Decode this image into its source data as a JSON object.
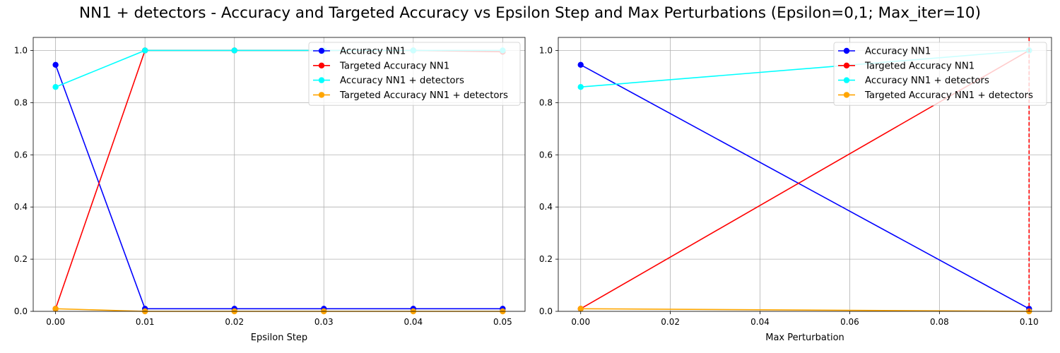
{
  "suptitle": "NN1 + detectors - Accuracy and Targeted Accuracy vs Epsilon Step and Max Perturbations (Epsilon=0,1; Max_iter=10)",
  "colors": {
    "accuracy": "#0000ff",
    "targeted": "#ff0000",
    "accuracy_det": "#00ffff",
    "targeted_det": "#ffa500",
    "vline": "#ff0000",
    "grid": "#b0b0b0"
  },
  "chart_data": [
    {
      "type": "line",
      "xlabel": "Epsilon Step",
      "ylabel": "",
      "x": [
        0.0,
        0.01,
        0.02,
        0.03,
        0.04,
        0.05
      ],
      "xticks": [
        "0.00",
        "0.01",
        "0.02",
        "0.03",
        "0.04",
        "0.05"
      ],
      "xlim": [
        -0.0025,
        0.0525
      ],
      "ylim": [
        0,
        1.05
      ],
      "yticks": [
        "0.0",
        "0.2",
        "0.4",
        "0.6",
        "0.8",
        "1.0"
      ],
      "grid": true,
      "legend_position": "top-right",
      "series": [
        {
          "name": "Accuracy NN1",
          "color_key": "accuracy",
          "values": [
            0.945,
            0.01,
            0.01,
            0.01,
            0.01,
            0.01
          ]
        },
        {
          "name": "Targeted Accuracy NN1",
          "color_key": "targeted",
          "values": [
            0.01,
            1.0,
            1.0,
            1.0,
            1.0,
            0.995
          ]
        },
        {
          "name": "Accuracy NN1 + detectors",
          "color_key": "accuracy_det",
          "values": [
            0.86,
            1.0,
            1.0,
            1.0,
            1.0,
            1.0
          ]
        },
        {
          "name": "Targeted Accuracy NN1 + detectors",
          "color_key": "targeted_det",
          "values": [
            0.01,
            0.0,
            0.0,
            0.0,
            0.0,
            0.0
          ]
        }
      ]
    },
    {
      "type": "line",
      "xlabel": "Max Perturbation",
      "ylabel": "",
      "x": [
        0.0,
        0.1
      ],
      "xticks": [
        "0.00",
        "0.02",
        "0.04",
        "0.06",
        "0.08",
        "0.10"
      ],
      "xlim": [
        -0.005,
        0.105
      ],
      "ylim": [
        0,
        1.05
      ],
      "yticks": [
        "0.0",
        "0.2",
        "0.4",
        "0.6",
        "0.8",
        "1.0"
      ],
      "grid": true,
      "legend_position": "top-right",
      "vline_x": 0.1,
      "series": [
        {
          "name": "Accuracy NN1",
          "color_key": "accuracy",
          "values": [
            0.945,
            0.01
          ]
        },
        {
          "name": "Targeted Accuracy NN1",
          "color_key": "targeted",
          "values": [
            0.01,
            1.0
          ]
        },
        {
          "name": "Accuracy NN1 + detectors",
          "color_key": "accuracy_det",
          "values": [
            0.86,
            1.0
          ]
        },
        {
          "name": "Targeted Accuracy NN1 + detectors",
          "color_key": "targeted_det",
          "values": [
            0.01,
            0.0
          ]
        }
      ]
    }
  ]
}
